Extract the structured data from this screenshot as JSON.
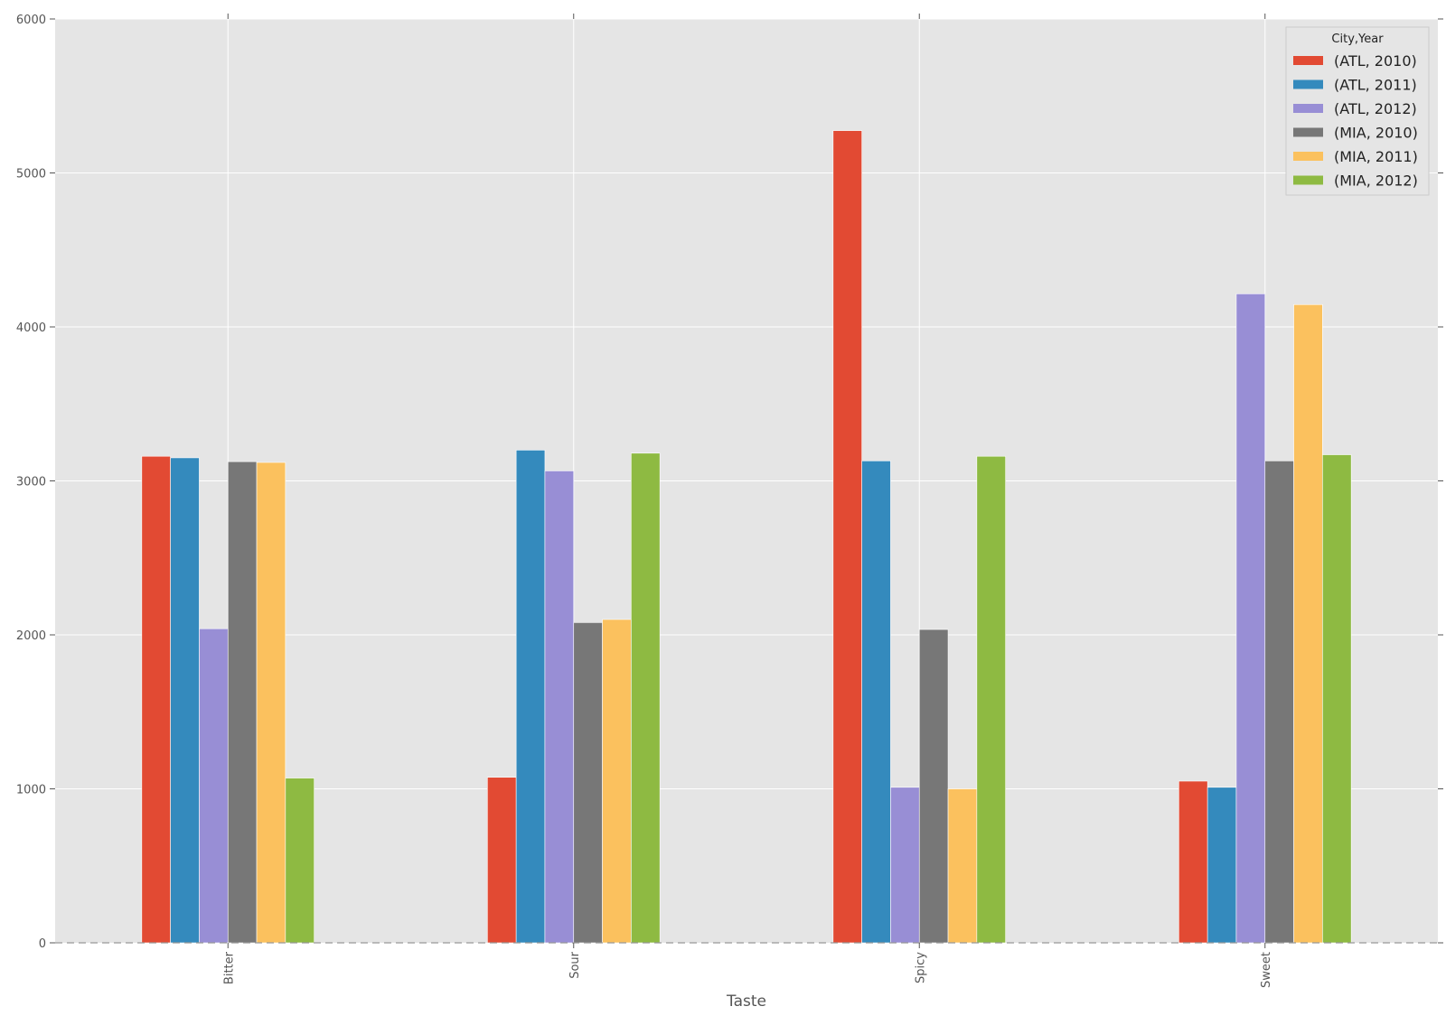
{
  "chart_data": {
    "type": "bar",
    "xlabel": "Taste",
    "ylabel": "",
    "ylim": [
      0,
      6000
    ],
    "yticks": [
      0,
      1000,
      2000,
      3000,
      4000,
      5000,
      6000
    ],
    "grid": true,
    "legend_title": "City,Year",
    "legend_position": "top-right",
    "categories": [
      "Bitter",
      "Sour",
      "Spicy",
      "Sweet"
    ],
    "series": [
      {
        "name": "(ATL, 2010)",
        "color": "#E24A33",
        "values": [
          3160,
          1075,
          5275,
          1050
        ]
      },
      {
        "name": "(ATL, 2011)",
        "color": "#348ABD",
        "values": [
          3150,
          3200,
          3130,
          1010
        ]
      },
      {
        "name": "(ATL, 2012)",
        "color": "#988ED5",
        "values": [
          2040,
          3065,
          1010,
          4215
        ]
      },
      {
        "name": "(MIA, 2010)",
        "color": "#777777",
        "values": [
          3125,
          2080,
          2035,
          3130
        ]
      },
      {
        "name": "(MIA, 2011)",
        "color": "#FBC15E",
        "values": [
          3120,
          2100,
          1000,
          4145
        ]
      },
      {
        "name": "(MIA, 2012)",
        "color": "#8EBA42",
        "values": [
          1070,
          3180,
          3160,
          3170
        ]
      }
    ]
  }
}
